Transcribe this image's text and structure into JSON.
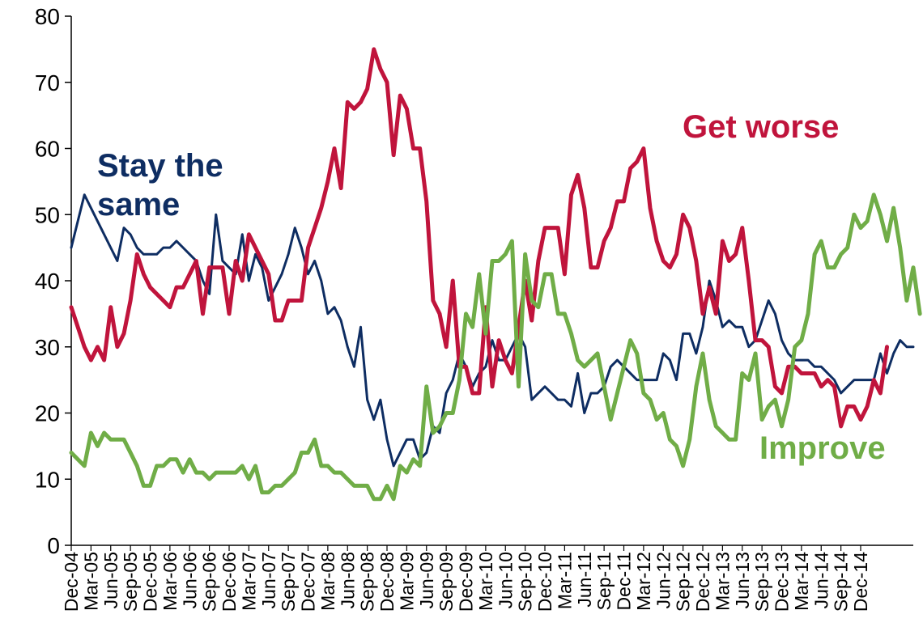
{
  "chart_data": {
    "type": "line",
    "title": "",
    "xlabel": "",
    "ylabel": "",
    "ylim": [
      0,
      80
    ],
    "yticks": [
      0,
      10,
      20,
      30,
      40,
      50,
      60,
      70,
      80
    ],
    "grid": false,
    "legend": "none",
    "x_tick_labels": [
      "Dec-04",
      "Mar-05",
      "Jun-05",
      "Sep-05",
      "Dec-05",
      "Mar-06",
      "Jun-06",
      "Sep-06",
      "Dec-06",
      "Mar-07",
      "Jun-07",
      "Sep-07",
      "Dec-07",
      "Mar-08",
      "Jun-08",
      "Sep-08",
      "Dec-08",
      "Mar-09",
      "Jun-09",
      "Sep-09",
      "Dec-09",
      "Mar-10",
      "Jun-10",
      "Sep-10",
      "Dec-10",
      "Mar-11",
      "Jun-11",
      "Sep-11",
      "Dec-11",
      "Mar-12",
      "Jun-12",
      "Sep-12",
      "Dec-12",
      "Mar-13",
      "Jun-13",
      "Sep-13",
      "Dec-13",
      "Mar-14",
      "Jun-14",
      "Sep-14",
      "Dec-14"
    ],
    "series": [
      {
        "name": "Stay the same",
        "label_lines": [
          "Stay the",
          "same"
        ],
        "color": "#0e2d62",
        "values": [
          45,
          49,
          53,
          51,
          49,
          47,
          45,
          43,
          48,
          47,
          45,
          44,
          44,
          44,
          45,
          45,
          46,
          45,
          44,
          43,
          40,
          38,
          50,
          43,
          42,
          41,
          47,
          40,
          44,
          42,
          37,
          39,
          41,
          44,
          48,
          45,
          41,
          43,
          40,
          35,
          36,
          34,
          30,
          27,
          33,
          22,
          19,
          22,
          16,
          12,
          14,
          16,
          16,
          13,
          14,
          18,
          17,
          23,
          25,
          29,
          27,
          24,
          26,
          27,
          31,
          28,
          28,
          30,
          32,
          30,
          22,
          23,
          24,
          23,
          22,
          22,
          21,
          26,
          20,
          23,
          23,
          24,
          27,
          28,
          27,
          26,
          25,
          25,
          25,
          25,
          29,
          28,
          25,
          32,
          32,
          29,
          33,
          40,
          37,
          33,
          34,
          33,
          33,
          30,
          31,
          34,
          37,
          35,
          31,
          29,
          28,
          28,
          28,
          27,
          27,
          26,
          25,
          23,
          24,
          25,
          25,
          25,
          25,
          29,
          26,
          29,
          31,
          30,
          30
        ]
      },
      {
        "name": "Get worse",
        "label_lines": [
          "Get worse"
        ],
        "color": "#c0143c",
        "values": [
          36,
          33,
          30,
          28,
          30,
          28,
          36,
          30,
          32,
          37,
          44,
          41,
          39,
          38,
          37,
          36,
          39,
          39,
          41,
          43,
          35,
          42,
          42,
          42,
          35,
          43,
          40,
          47,
          45,
          43,
          41,
          34,
          34,
          37,
          37,
          37,
          45,
          48,
          51,
          55,
          60,
          54,
          67,
          66,
          67,
          69,
          75,
          72,
          70,
          59,
          68,
          66,
          60,
          60,
          52,
          37,
          35,
          30,
          40,
          27,
          27,
          23,
          23,
          36,
          24,
          31,
          28,
          26,
          33,
          40,
          34,
          43,
          48,
          48,
          48,
          41,
          53,
          56,
          51,
          42,
          42,
          46,
          48,
          52,
          52,
          57,
          58,
          60,
          51,
          46,
          43,
          42,
          44,
          50,
          48,
          43,
          35,
          39,
          35,
          46,
          43,
          44,
          48,
          40,
          31,
          31,
          30,
          24,
          23,
          27,
          27,
          26,
          26,
          26,
          24,
          25,
          24,
          18,
          21,
          21,
          19,
          21,
          25,
          23,
          30
        ]
      },
      {
        "name": "Improve",
        "label_lines": [
          "Improve"
        ],
        "color": "#70ad47",
        "values": [
          14,
          13,
          12,
          17,
          15,
          17,
          16,
          16,
          16,
          14,
          12,
          9,
          9,
          12,
          12,
          13,
          13,
          11,
          13,
          11,
          11,
          10,
          11,
          11,
          11,
          11,
          12,
          10,
          12,
          8,
          8,
          9,
          9,
          10,
          11,
          14,
          14,
          16,
          12,
          12,
          11,
          11,
          10,
          9,
          9,
          9,
          7,
          7,
          9,
          7,
          12,
          11,
          13,
          12,
          24,
          17,
          18,
          20,
          20,
          25,
          35,
          33,
          41,
          32,
          43,
          43,
          44,
          46,
          24,
          44,
          37,
          36,
          41,
          41,
          35,
          35,
          32,
          28,
          27,
          28,
          29,
          24,
          19,
          23,
          27,
          31,
          29,
          23,
          22,
          19,
          20,
          16,
          15,
          12,
          16,
          24,
          29,
          22,
          18,
          17,
          16,
          16,
          26,
          25,
          29,
          19,
          21,
          22,
          18,
          22,
          30,
          31,
          35,
          44,
          46,
          42,
          42,
          44,
          45,
          50,
          48,
          49,
          53,
          50,
          46,
          51,
          45,
          37,
          42,
          35
        ]
      }
    ]
  }
}
